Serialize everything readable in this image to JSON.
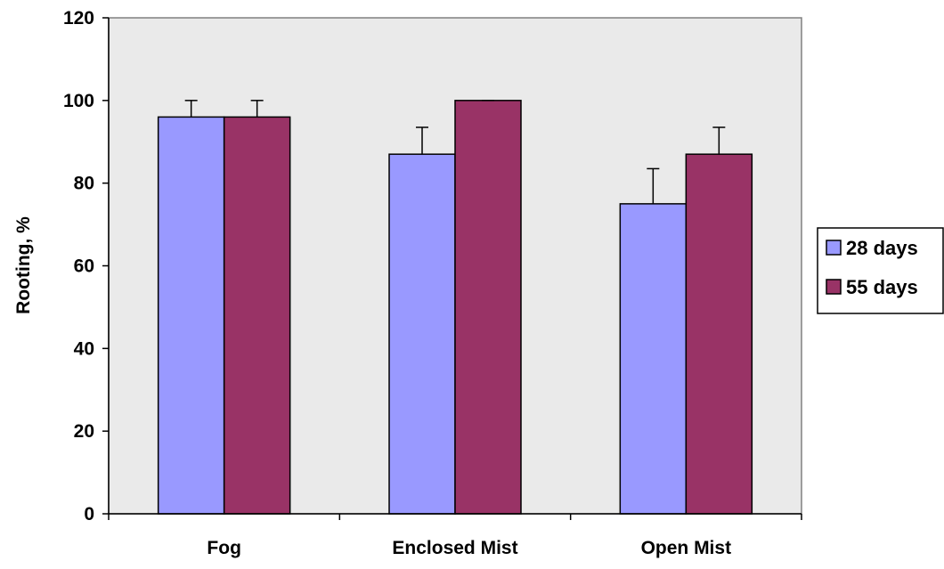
{
  "chart_data": {
    "type": "bar",
    "title": "",
    "xlabel": "",
    "ylabel": "Rooting, %",
    "ylim": [
      0,
      120
    ],
    "yticks": [
      "0",
      "20",
      "40",
      "60",
      "80",
      "100",
      "120"
    ],
    "categories": [
      "Fog",
      "Enclosed Mist",
      "Open Mist"
    ],
    "series": [
      {
        "name": "28 days",
        "color": "#9999ff",
        "values": [
          96,
          87,
          75
        ],
        "errors": [
          4,
          6.5,
          8.5
        ]
      },
      {
        "name": "55 days",
        "color": "#993366",
        "values": [
          96,
          100,
          87
        ],
        "errors": [
          4,
          0,
          6.5
        ]
      }
    ],
    "grid": false,
    "plot_background": "#eaeaea",
    "legend_position": "right"
  }
}
